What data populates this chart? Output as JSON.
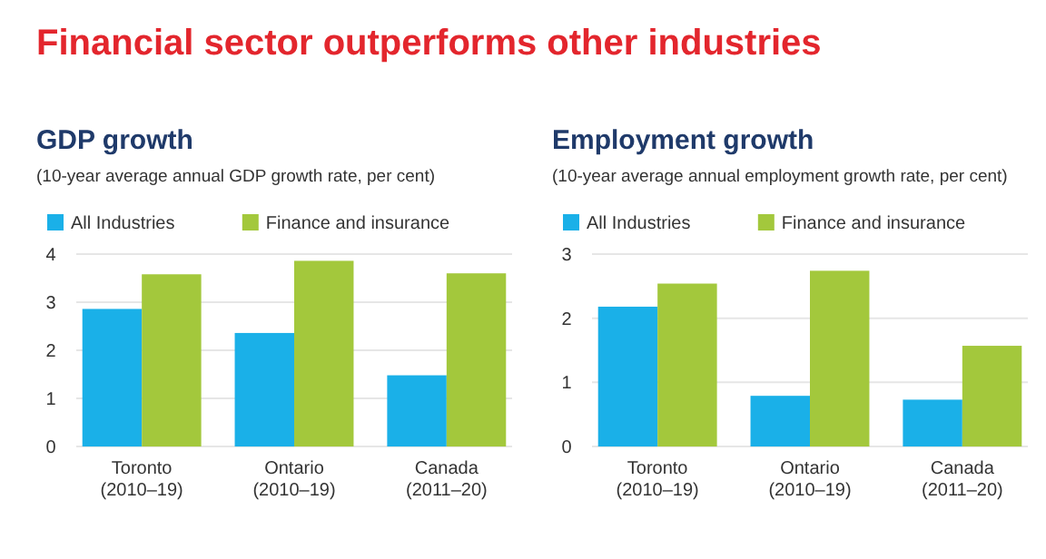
{
  "chart_data": [
    {
      "type": "other",
      "title": "Financial sector outperforms other industries"
    },
    {
      "type": "bar",
      "title": "GDP growth",
      "subtitle": "(10-year average annual GDP growth rate, per cent)",
      "categories": [
        "Toronto\n(2010–19)",
        "Ontario\n(2010–19)",
        "Canada\n(2011–20)"
      ],
      "series": [
        {
          "name": "All Industries",
          "color": "#1ab0e8",
          "values": [
            2.86,
            2.36,
            1.48
          ]
        },
        {
          "name": "Finance and insurance",
          "color": "#a3c83c",
          "values": [
            3.58,
            3.86,
            3.6
          ]
        }
      ],
      "ylim": [
        0,
        4
      ],
      "yticks": [
        0,
        1,
        2,
        3,
        4
      ],
      "grid": "y",
      "legend": "top left"
    },
    {
      "type": "bar",
      "title": "Employment growth",
      "subtitle": "(10-year average annual employment growth rate, per cent)",
      "categories": [
        "Toronto\n(2010–19)",
        "Ontario\n(2010–19)",
        "Canada\n(2011–20)"
      ],
      "series": [
        {
          "name": "All Industries",
          "color": "#1ab0e8",
          "values": [
            2.18,
            0.79,
            0.73
          ]
        },
        {
          "name": "Finance and insurance",
          "color": "#a3c83c",
          "values": [
            2.54,
            2.74,
            1.57
          ]
        }
      ],
      "ylim": [
        0,
        3
      ],
      "yticks": [
        0,
        1,
        2,
        3
      ],
      "grid": "y",
      "legend": "top left"
    }
  ]
}
